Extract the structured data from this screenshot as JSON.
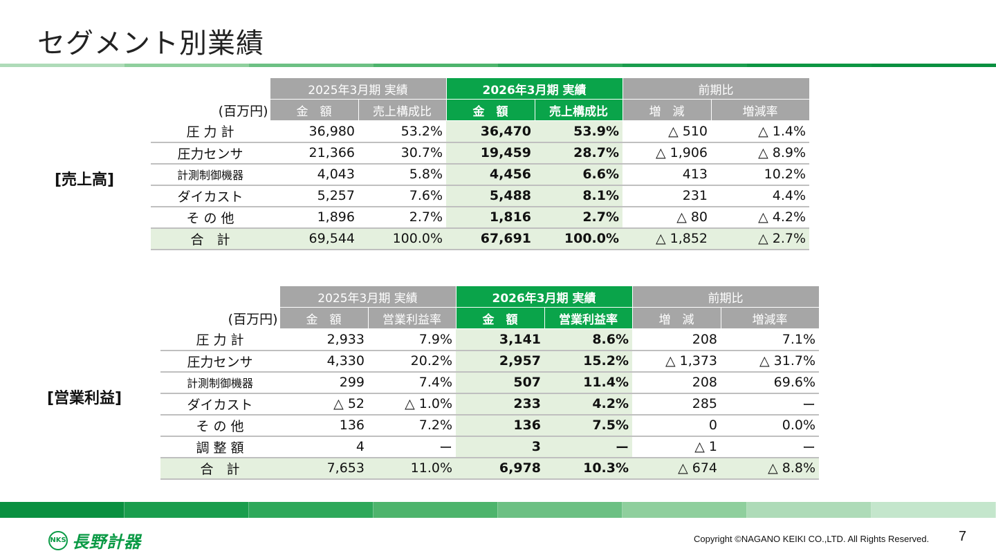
{
  "title": "セグメント別業績",
  "unit": "(百万円)",
  "band_colors": {
    "top": [
      "#aedbb8",
      "#8fcf9d",
      "#6cc083",
      "#4db46c",
      "#2ea85a",
      "#1a9d4d",
      "#0d9643",
      "#0a9040"
    ],
    "bottom": [
      "#0a9040",
      "#1a9d4d",
      "#2ea85a",
      "#4db46c",
      "#6cc083",
      "#8fcf9d",
      "#aedbb8",
      "#c4e6cc"
    ]
  },
  "accent_color": "#0aa44a",
  "header_gray": "#a6a6a6",
  "current_column_bg": "#e4f0de",
  "sales": {
    "label": "[売上高]",
    "period_prev": "2025年3月期 実績",
    "period_cur": "2026年3月期 実績",
    "comparison": "前期比",
    "col_amount": "金　額",
    "col_ratio": "売上構成比",
    "col_diff": "増　減",
    "col_rate": "増減率",
    "rows": [
      {
        "label": "圧 力 計",
        "prev_amount": "36,980",
        "prev_ratio": "53.2%",
        "cur_amount": "36,470",
        "cur_ratio": "53.9%",
        "diff": "△ 510",
        "rate": "△ 1.4%"
      },
      {
        "label": "圧力センサ",
        "prev_amount": "21,366",
        "prev_ratio": "30.7%",
        "cur_amount": "19,459",
        "cur_ratio": "28.7%",
        "diff": "△ 1,906",
        "rate": "△ 8.9%"
      },
      {
        "label": "計測制御機器",
        "prev_amount": "4,043",
        "prev_ratio": "5.8%",
        "cur_amount": "4,456",
        "cur_ratio": "6.6%",
        "diff": "413",
        "rate": "10.2%"
      },
      {
        "label": "ダイカスト",
        "prev_amount": "5,257",
        "prev_ratio": "7.6%",
        "cur_amount": "5,488",
        "cur_ratio": "8.1%",
        "diff": "231",
        "rate": "4.4%"
      },
      {
        "label": "そ の 他",
        "prev_amount": "1,896",
        "prev_ratio": "2.7%",
        "cur_amount": "1,816",
        "cur_ratio": "2.7%",
        "diff": "△ 80",
        "rate": "△ 4.2%"
      }
    ],
    "total": {
      "label": "合　計",
      "prev_amount": "69,544",
      "prev_ratio": "100.0%",
      "cur_amount": "67,691",
      "cur_ratio": "100.0%",
      "diff": "△ 1,852",
      "rate": "△ 2.7%"
    }
  },
  "profit": {
    "label": "[営業利益]",
    "period_prev": "2025年3月期 実績",
    "period_cur": "2026年3月期 実績",
    "comparison": "前期比",
    "col_amount": "金　額",
    "col_ratio": "営業利益率",
    "col_diff": "増　減",
    "col_rate": "増減率",
    "rows": [
      {
        "label": "圧 力 計",
        "prev_amount": "2,933",
        "prev_ratio": "7.9%",
        "cur_amount": "3,141",
        "cur_ratio": "8.6%",
        "diff": "208",
        "rate": "7.1%"
      },
      {
        "label": "圧力センサ",
        "prev_amount": "4,330",
        "prev_ratio": "20.2%",
        "cur_amount": "2,957",
        "cur_ratio": "15.2%",
        "diff": "△ 1,373",
        "rate": "△ 31.7%"
      },
      {
        "label": "計測制御機器",
        "prev_amount": "299",
        "prev_ratio": "7.4%",
        "cur_amount": "507",
        "cur_ratio": "11.4%",
        "diff": "208",
        "rate": "69.6%"
      },
      {
        "label": "ダイカスト",
        "prev_amount": "△ 52",
        "prev_ratio": "△ 1.0%",
        "cur_amount": "233",
        "cur_ratio": "4.2%",
        "diff": "285",
        "rate": "ー"
      },
      {
        "label": "そ の 他",
        "prev_amount": "136",
        "prev_ratio": "7.2%",
        "cur_amount": "136",
        "cur_ratio": "7.5%",
        "diff": "0",
        "rate": "0.0%"
      },
      {
        "label": "調 整 額",
        "prev_amount": "4",
        "prev_ratio": "ー",
        "cur_amount": "3",
        "cur_ratio": "ー",
        "diff": "△ 1",
        "rate": "ー"
      }
    ],
    "total": {
      "label": "合　計",
      "prev_amount": "7,653",
      "prev_ratio": "11.0%",
      "cur_amount": "6,978",
      "cur_ratio": "10.3%",
      "diff": "△ 674",
      "rate": "△ 8.8%"
    }
  },
  "footer": {
    "logo_mark": "NKS",
    "logo_text": "長野計器",
    "copyright": "Copyright ©NAGANO KEIKI CO.,LTD. All Rights Reserved.",
    "page_number": "7"
  }
}
